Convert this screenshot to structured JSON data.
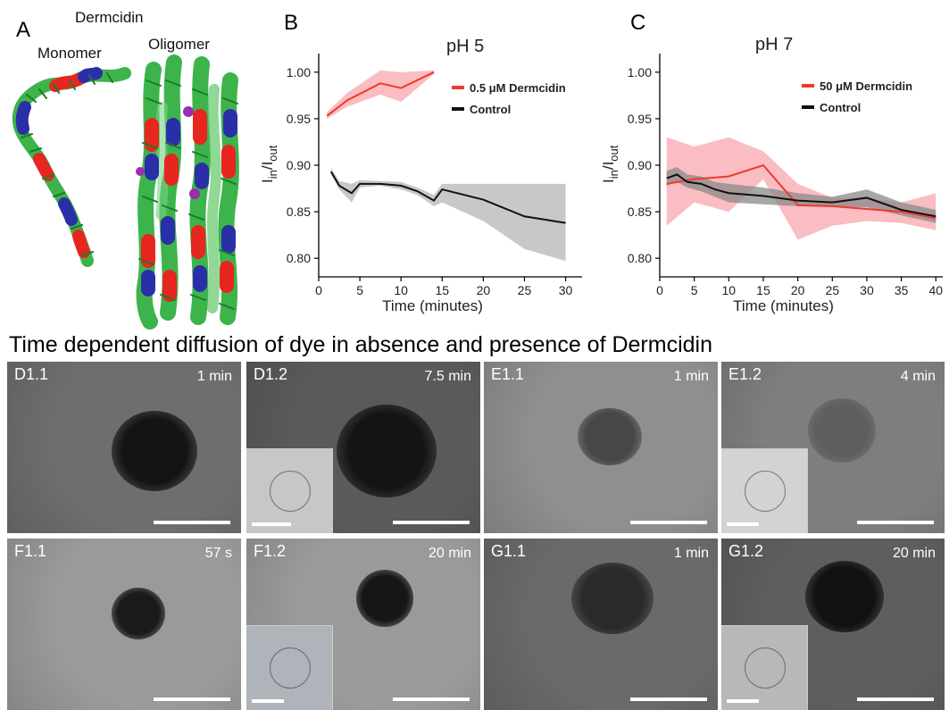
{
  "panel_a": {
    "letter": "A",
    "title": "Dermcidin",
    "monomer_label": "Monomer",
    "oligomer_label": "Oligomer",
    "helix_colors": {
      "green": "#3cb44b",
      "red": "#e6261f",
      "blue": "#2a2fa8",
      "purple": "#9b2fae"
    }
  },
  "panel_b": {
    "letter": "B"
  },
  "panel_c": {
    "letter": "C"
  },
  "section_title": "Time dependent diffusion of dye in absence and presence of Dermcidin",
  "chart_data": [
    {
      "type": "line",
      "title": "pH 5",
      "xlabel": "Time (minutes)",
      "ylabel_main": "I",
      "ylabel_sub1": "in",
      "ylabel_sep": "/I",
      "ylabel_sub2": "out",
      "xlim": [
        0,
        32
      ],
      "ylim": [
        0.78,
        1.02
      ],
      "xticks": [
        0,
        5,
        10,
        15,
        20,
        25,
        30
      ],
      "yticks": [
        0.8,
        0.85,
        0.9,
        0.95,
        1.0
      ],
      "ytick_labels": [
        "0.80",
        "0.85",
        "0.90",
        "0.95",
        "1.00"
      ],
      "legend_position": "right",
      "series": [
        {
          "name": "0.5 μM Dermcidin",
          "color": "#ee3b2b",
          "band_color": "#f7a7ad",
          "x": [
            1,
            3.5,
            7.5,
            10,
            14
          ],
          "y": [
            0.953,
            0.97,
            0.988,
            0.983,
            1.0
          ],
          "lower": [
            0.95,
            0.963,
            0.976,
            0.968,
            0.998
          ],
          "upper": [
            0.957,
            0.978,
            1.002,
            1.0,
            1.002
          ]
        },
        {
          "name": "Control",
          "color": "#111111",
          "band_color": "#b5b5b5",
          "x": [
            1.5,
            2.5,
            4,
            5,
            7.5,
            10,
            12,
            14,
            15,
            20,
            25,
            30
          ],
          "y": [
            0.893,
            0.878,
            0.87,
            0.88,
            0.88,
            0.878,
            0.872,
            0.862,
            0.874,
            0.863,
            0.845,
            0.838
          ],
          "lower": [
            0.89,
            0.874,
            0.86,
            0.876,
            0.878,
            0.874,
            0.868,
            0.856,
            0.86,
            0.84,
            0.81,
            0.797
          ],
          "upper": [
            0.897,
            0.883,
            0.88,
            0.884,
            0.883,
            0.882,
            0.876,
            0.868,
            0.88,
            0.88,
            0.88,
            0.88
          ]
        }
      ]
    },
    {
      "type": "line",
      "title": "pH 7",
      "xlabel": "Time (minutes)",
      "ylabel_main": "I",
      "ylabel_sub1": "in",
      "ylabel_sep": "/I",
      "ylabel_sub2": "out",
      "xlim": [
        0,
        41
      ],
      "ylim": [
        0.78,
        1.02
      ],
      "xticks": [
        0,
        5,
        10,
        15,
        20,
        25,
        30,
        35,
        40
      ],
      "yticks": [
        0.8,
        0.85,
        0.9,
        0.95,
        1.0
      ],
      "ytick_labels": [
        "0.80",
        "0.85",
        "0.90",
        "0.95",
        "1.00"
      ],
      "legend_position": "top-right",
      "series": [
        {
          "name": "50 μM Dermcidin",
          "color": "#ee3b2b",
          "band_color": "#f7a7ad",
          "x": [
            1,
            5,
            10,
            15,
            20,
            25,
            30,
            35,
            40
          ],
          "y": [
            0.88,
            0.885,
            0.888,
            0.9,
            0.857,
            0.856,
            0.853,
            0.85,
            0.843
          ],
          "lower": [
            0.835,
            0.86,
            0.85,
            0.885,
            0.82,
            0.835,
            0.84,
            0.838,
            0.83
          ],
          "upper": [
            0.93,
            0.92,
            0.93,
            0.915,
            0.88,
            0.865,
            0.865,
            0.86,
            0.87
          ]
        },
        {
          "name": "Control",
          "color": "#111111",
          "band_color": "#8a8a8a",
          "x": [
            1,
            2.5,
            4,
            6,
            8,
            10,
            15,
            20,
            25,
            30,
            35,
            40
          ],
          "y": [
            0.886,
            0.89,
            0.882,
            0.88,
            0.874,
            0.87,
            0.867,
            0.862,
            0.86,
            0.865,
            0.852,
            0.845
          ],
          "lower": [
            0.878,
            0.882,
            0.876,
            0.872,
            0.866,
            0.86,
            0.858,
            0.856,
            0.855,
            0.855,
            0.846,
            0.838
          ],
          "upper": [
            0.894,
            0.898,
            0.89,
            0.888,
            0.882,
            0.88,
            0.876,
            0.87,
            0.866,
            0.874,
            0.86,
            0.852
          ]
        }
      ]
    }
  ],
  "micrographs": [
    {
      "label": "D1.1",
      "time": "1 min",
      "bg": "#6e6e6e",
      "blob": "#141414",
      "inset": false
    },
    {
      "label": "D1.2",
      "time": "7.5 min",
      "bg": "#5a5a5a",
      "blob": "#141414",
      "inset": true,
      "inset_bg": "#c7c7c7"
    },
    {
      "label": "E1.1",
      "time": "1 min",
      "bg": "#8f8f8f",
      "blob": "#474747",
      "inset": false
    },
    {
      "label": "E1.2",
      "time": "4 min",
      "bg": "#7e7e7e",
      "blob": "#5f5f5f",
      "inset": true,
      "inset_bg": "#d2d4d4"
    },
    {
      "label": "F1.1",
      "time": "57 s",
      "bg": "#9a9a9a",
      "blob": "#1a1a1a",
      "inset": false
    },
    {
      "label": "F1.2",
      "time": "20 min",
      "bg": "#9a9a9a",
      "blob": "#161616",
      "inset": true,
      "inset_bg": "#aeb4ba"
    },
    {
      "label": "G1.1",
      "time": "1 min",
      "bg": "#6a6a6a",
      "blob": "#2a2a2a",
      "inset": false
    },
    {
      "label": "G1.2",
      "time": "20 min",
      "bg": "#5e5e5e",
      "blob": "#111111",
      "inset": true,
      "inset_bg": "#b8b8b8"
    }
  ]
}
